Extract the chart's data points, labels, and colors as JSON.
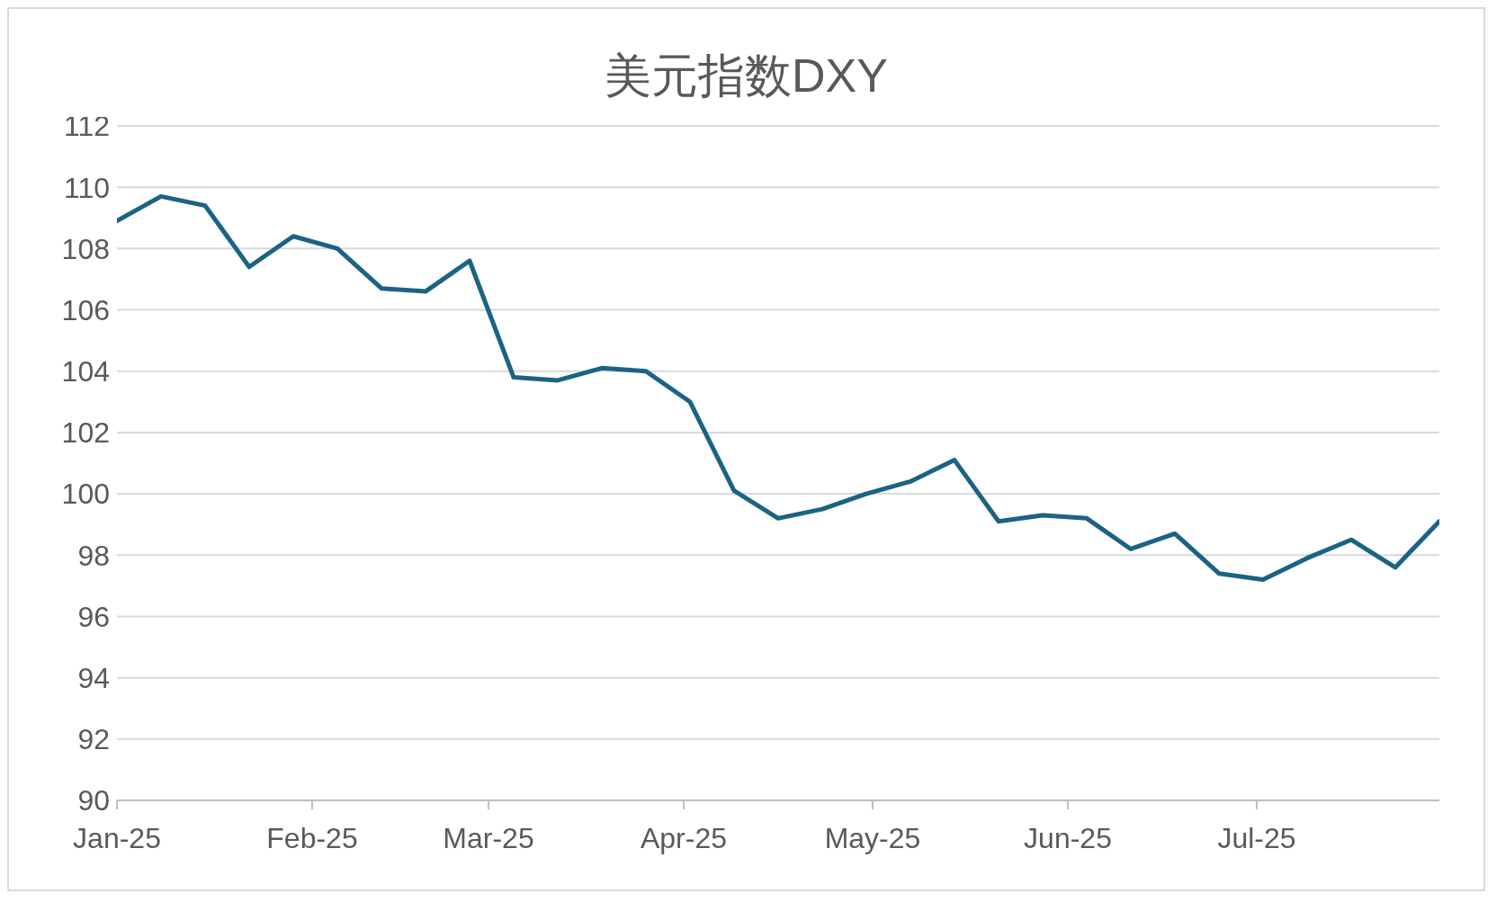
{
  "chart_data": {
    "type": "line",
    "title": "美元指数DXY",
    "x": [
      "2025-01-01",
      "2025-01-08",
      "2025-01-15",
      "2025-01-22",
      "2025-01-29",
      "2025-02-05",
      "2025-02-12",
      "2025-02-19",
      "2025-02-26",
      "2025-03-05",
      "2025-03-12",
      "2025-03-19",
      "2025-03-26",
      "2025-04-02",
      "2025-04-09",
      "2025-04-16",
      "2025-04-23",
      "2025-04-30",
      "2025-05-07",
      "2025-05-14",
      "2025-05-21",
      "2025-05-28",
      "2025-06-04",
      "2025-06-11",
      "2025-06-18",
      "2025-06-25",
      "2025-07-02",
      "2025-07-09",
      "2025-07-16",
      "2025-07-23",
      "2025-07-30"
    ],
    "series": [
      {
        "color": "#1b6385",
        "values": [
          108.9,
          109.7,
          109.4,
          107.4,
          108.4,
          108.0,
          106.7,
          106.6,
          107.6,
          103.8,
          103.7,
          104.1,
          104.0,
          103.0,
          100.1,
          99.2,
          99.5,
          100.0,
          100.4,
          101.1,
          99.1,
          99.3,
          99.2,
          98.2,
          98.7,
          97.4,
          97.2,
          97.9,
          98.5,
          97.6,
          99.1
        ]
      }
    ],
    "xlim": [
      "2025-01-01",
      "2025-07-30"
    ],
    "xticks": [
      {
        "value": "2025-01-01",
        "label": "Jan-25"
      },
      {
        "value": "2025-02-01",
        "label": "Feb-25"
      },
      {
        "value": "2025-03-01",
        "label": "Mar-25"
      },
      {
        "value": "2025-04-01",
        "label": "Apr-25"
      },
      {
        "value": "2025-05-01",
        "label": "May-25"
      },
      {
        "value": "2025-06-01",
        "label": "Jun-25"
      },
      {
        "value": "2025-07-01",
        "label": "Jul-25"
      }
    ],
    "ylim": [
      90,
      112
    ],
    "yticks": [
      90,
      92,
      94,
      96,
      98,
      100,
      102,
      104,
      106,
      108,
      110,
      112
    ],
    "grid": "y",
    "line_style": "solid"
  }
}
